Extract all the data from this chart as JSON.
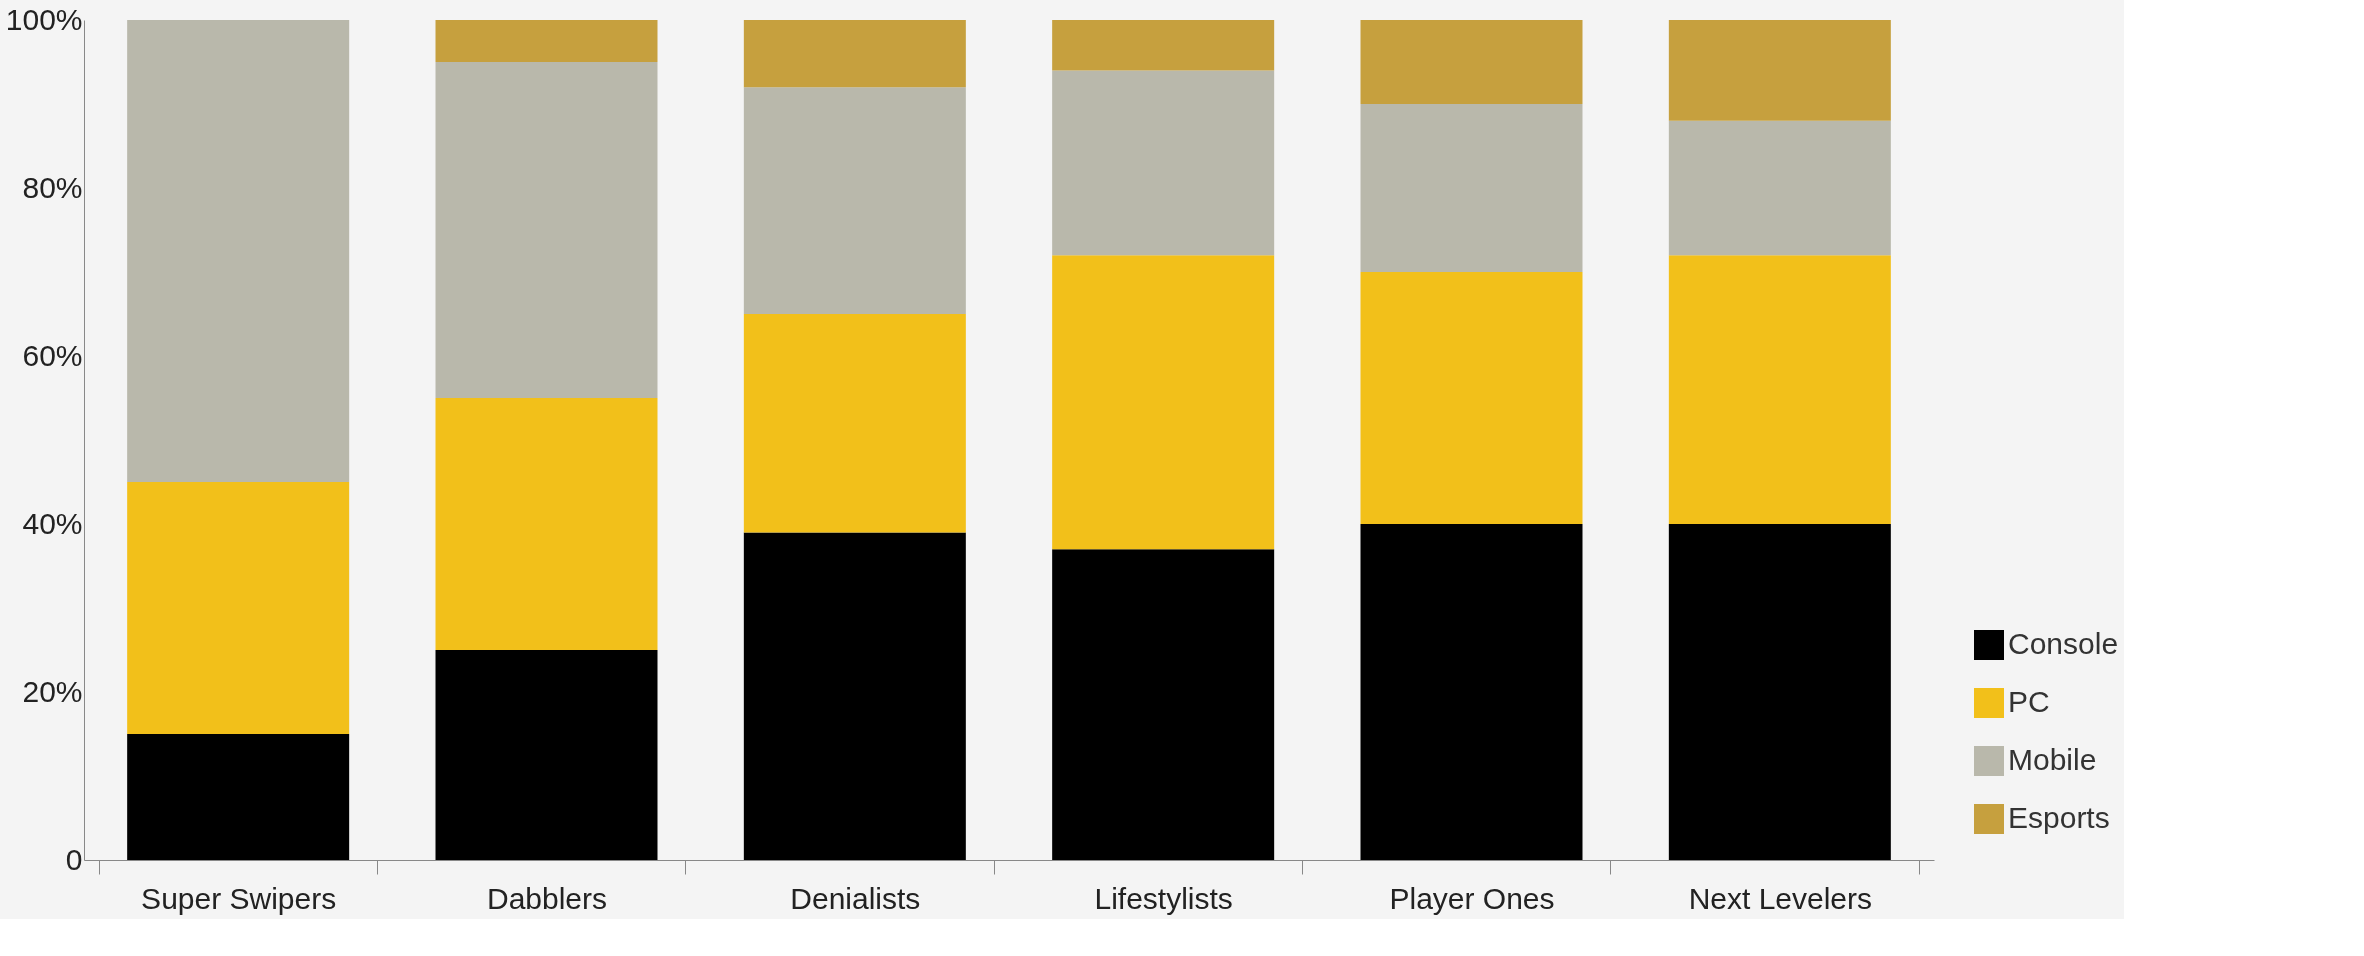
{
  "chart_data": {
    "type": "bar",
    "stacked": true,
    "categories": [
      "Super Swipers",
      "Dabblers",
      "Denialists",
      "Lifestylists",
      "Player Ones",
      "Next Levelers"
    ],
    "series": [
      {
        "name": "Console",
        "color": "#000000",
        "values": [
          15,
          25,
          39,
          37,
          40,
          40
        ]
      },
      {
        "name": "PC",
        "color": "#f2c01a",
        "values": [
          30,
          30,
          26,
          35,
          30,
          32
        ]
      },
      {
        "name": "Mobile",
        "color": "#b9b8ab",
        "values": [
          55,
          40,
          27,
          22,
          20,
          16
        ]
      },
      {
        "name": "Esports",
        "color": "#c6a03e",
        "values": [
          0,
          5,
          8,
          6,
          10,
          12
        ]
      }
    ],
    "ylim": [
      0,
      100
    ],
    "yticks": [
      {
        "value": 0,
        "label": "0"
      },
      {
        "value": 20,
        "label": "20%"
      },
      {
        "value": 40,
        "label": "40%"
      },
      {
        "value": 60,
        "label": "60%"
      },
      {
        "value": 80,
        "label": "80%"
      },
      {
        "value": 100,
        "label": "100%"
      }
    ],
    "grid": false,
    "legend": "bottom right"
  }
}
